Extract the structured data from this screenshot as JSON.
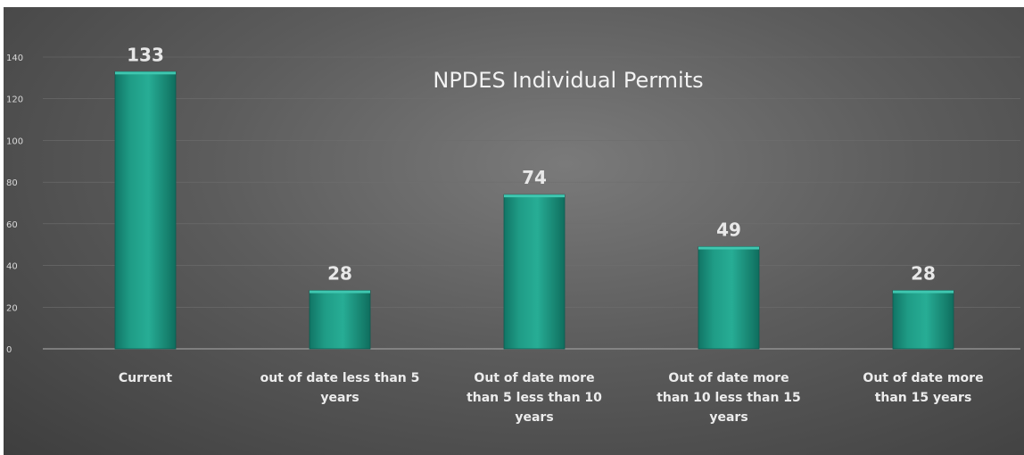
{
  "chart_data": {
    "type": "bar",
    "title": "NPDES Individual Permits",
    "categories": [
      [
        "Current"
      ],
      [
        "out of date less than 5",
        "years"
      ],
      [
        "Out of date more",
        "than 5 less than 10",
        "years"
      ],
      [
        "Out of date more",
        "than 10 less than 15",
        "years"
      ],
      [
        "Out of date more",
        "than 15 years"
      ]
    ],
    "values": [
      133,
      28,
      74,
      49,
      28
    ],
    "yticks": [
      "0",
      "20",
      "40",
      "60",
      "80",
      "100",
      "120",
      "140"
    ],
    "ylim": [
      0,
      140
    ],
    "grid": true,
    "legend": "none",
    "colors": {
      "bar_top": "#3fc7b0",
      "bar_mid": "#1f9c86",
      "bar_bottom": "#117565",
      "background": "#5c5c5c"
    }
  }
}
